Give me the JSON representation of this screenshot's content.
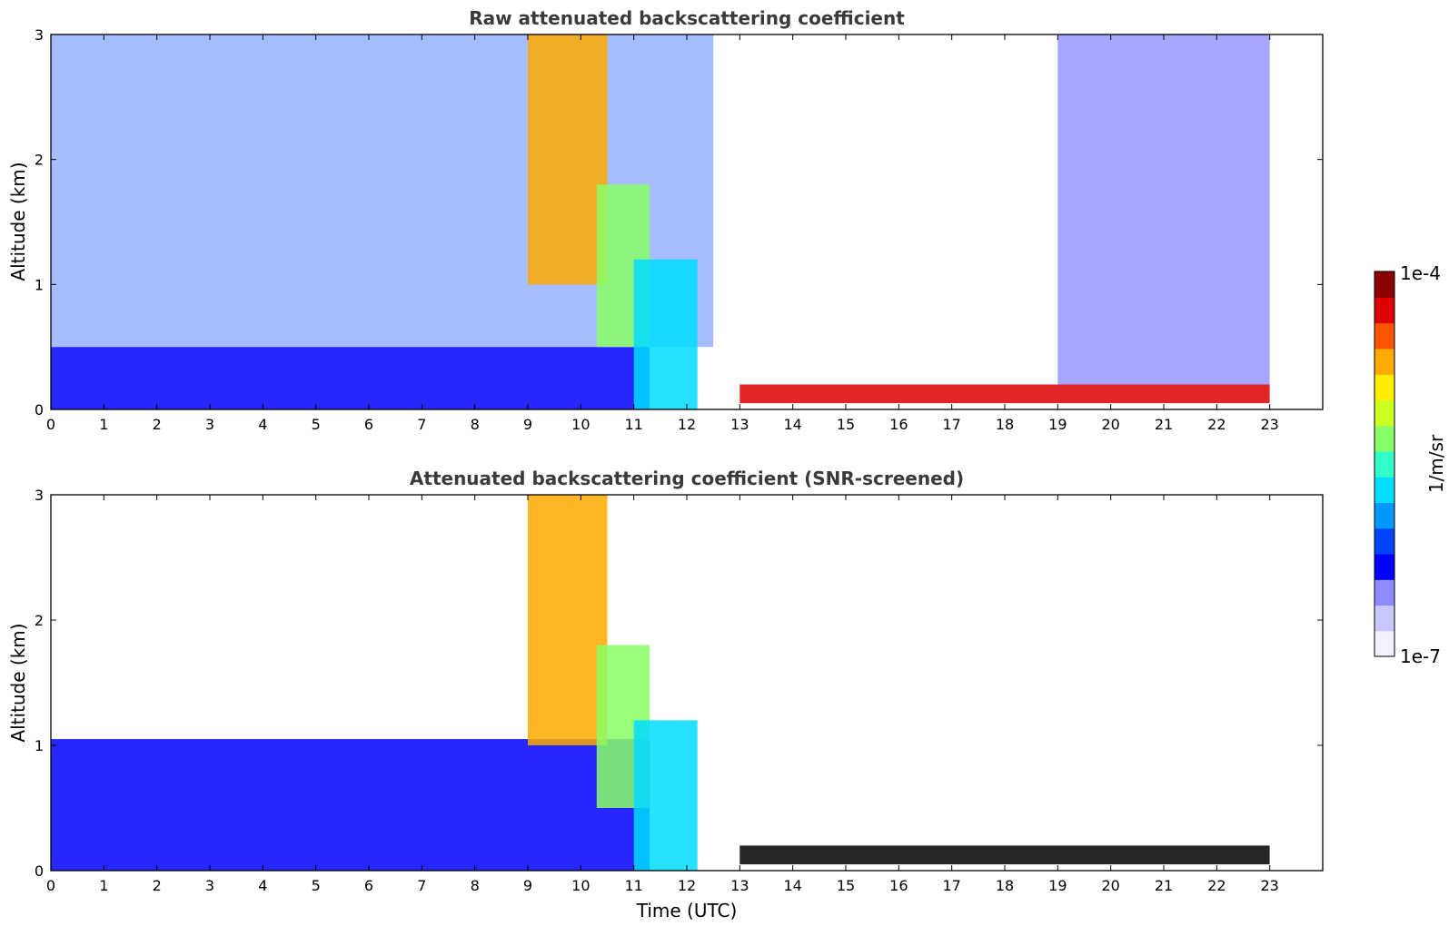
{
  "colors": {
    "cmap": [
      "#f2f2ff",
      "#c8c8ff",
      "#8c8cff",
      "#0000ff",
      "#0044ff",
      "#0099ff",
      "#00ddff",
      "#33ffcc",
      "#88ff66",
      "#ccff22",
      "#ffee00",
      "#ffaa00",
      "#ff5500",
      "#dd0000",
      "#8b0000"
    ],
    "frame": "#000000",
    "title": "#3a3a3a"
  },
  "chart_data": [
    {
      "type": "heatmap",
      "title": "Raw attenuated backscattering coefficient",
      "xlabel": "",
      "ylabel": "Altitude (km)",
      "xlim": [
        0,
        24
      ],
      "ylim": [
        0,
        3
      ],
      "xticks": [
        "0",
        "1",
        "2",
        "3",
        "4",
        "5",
        "6",
        "7",
        "8",
        "9",
        "10",
        "11",
        "12",
        "13",
        "14",
        "15",
        "16",
        "17",
        "18",
        "19",
        "20",
        "21",
        "22",
        "23"
      ],
      "yticks": [
        "0",
        "1",
        "2",
        "3"
      ],
      "color_scale": "log",
      "features": [
        {
          "kind": "aerosol",
          "t": [
            0,
            11.3
          ],
          "z": [
            0,
            0.5
          ],
          "level": 0.2
        },
        {
          "kind": "noise",
          "t": [
            0,
            12.5
          ],
          "z": [
            0.5,
            3
          ],
          "level": 0.25
        },
        {
          "kind": "cloud_layer",
          "t": [
            9.0,
            10.5
          ],
          "z": [
            1.0,
            3.0
          ],
          "level": 0.75
        },
        {
          "kind": "cloud_layer",
          "t": [
            10.3,
            11.3
          ],
          "z": [
            0.5,
            1.8
          ],
          "level": 0.55
        },
        {
          "kind": "precipitation",
          "t": [
            11.0,
            12.2
          ],
          "z": [
            0,
            1.2
          ],
          "level": 0.45
        },
        {
          "kind": "boundary_layer",
          "t": [
            13.0,
            23.0
          ],
          "z": [
            0.05,
            0.2
          ],
          "level": 0.95
        },
        {
          "kind": "noise_streaks",
          "t": [
            19.0,
            23.0
          ],
          "z": [
            0.2,
            3.0
          ],
          "level": 0.2
        }
      ]
    },
    {
      "type": "heatmap",
      "title": "Attenuated backscattering coefficient (SNR-screened)",
      "xlabel": "Time (UTC)",
      "ylabel": "Altitude (km)",
      "xlim": [
        0,
        24
      ],
      "ylim": [
        0,
        3
      ],
      "xticks": [
        "0",
        "1",
        "2",
        "3",
        "4",
        "5",
        "6",
        "7",
        "8",
        "9",
        "10",
        "11",
        "12",
        "13",
        "14",
        "15",
        "16",
        "17",
        "18",
        "19",
        "20",
        "21",
        "22",
        "23"
      ],
      "yticks": [
        "0",
        "1",
        "2",
        "3"
      ],
      "color_scale": "log",
      "features": [
        {
          "kind": "aerosol",
          "t": [
            0,
            11.3
          ],
          "z": [
            0,
            1.05
          ],
          "level": 0.2
        },
        {
          "kind": "cloud_layer",
          "t": [
            9.0,
            10.5
          ],
          "z": [
            1.0,
            3.0
          ],
          "level": 0.75
        },
        {
          "kind": "cloud_layer",
          "t": [
            10.3,
            11.3
          ],
          "z": [
            0.5,
            1.8
          ],
          "level": 0.55
        },
        {
          "kind": "precipitation",
          "t": [
            11.0,
            12.2
          ],
          "z": [
            0,
            1.2
          ],
          "level": 0.45
        },
        {
          "kind": "boundary_layer_saturated",
          "t": [
            13.0,
            23.0
          ],
          "z": [
            0.05,
            0.2
          ],
          "level": 1.0
        }
      ]
    }
  ],
  "colorbar": {
    "label": "1/m/sr",
    "min_label": "1e-7",
    "max_label": "1e-4",
    "range": [
      1e-07,
      0.0001
    ],
    "scale": "log"
  }
}
